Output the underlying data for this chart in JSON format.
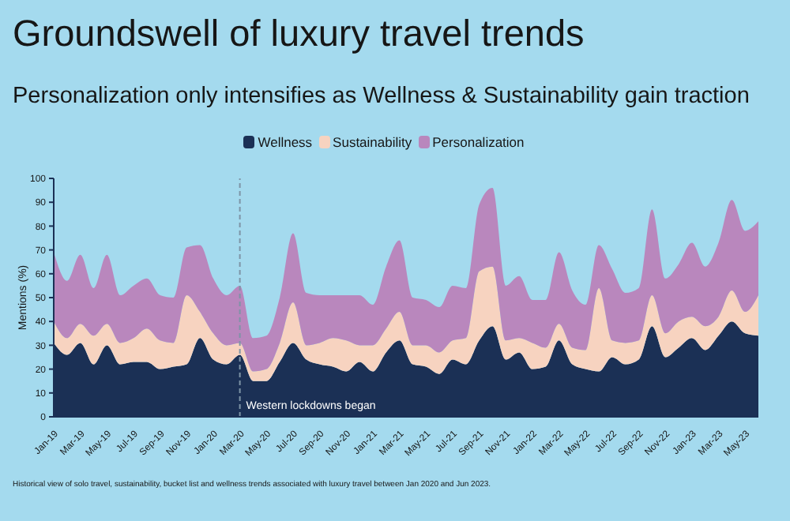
{
  "chart_data": {
    "type": "area",
    "title": "Groundswell of luxury travel trends",
    "subtitle": "Personalization only intensifies as Wellness & Sustainability gain traction",
    "ylabel": "Mentions (%)",
    "annotations": [
      "Historical view of solo travel, sustainability, bucket list and wellness trends associated with luxury travel between Jan 2020 and Jun 2023."
    ],
    "categories": [
      "Jan-19",
      null,
      "Mar-19",
      null,
      "May-19",
      null,
      "Jul-19",
      null,
      "Sep-19",
      null,
      "Nov-19",
      null,
      "Jan-20",
      null,
      "Mar-20",
      null,
      "May-20",
      null,
      "Jul-20",
      null,
      "Sep-20",
      null,
      "Nov-20",
      null,
      "Jan-21",
      null,
      "Mar-21",
      null,
      "May-21",
      null,
      "Jul-21",
      null,
      "Sep-21",
      null,
      "Nov-21",
      null,
      "Jan-22",
      null,
      "Mar-22",
      null,
      "May-22",
      null,
      "Jul-22",
      null,
      "Sep-22",
      null,
      "Nov-22",
      null,
      "Jan-23",
      null,
      "Mar-23",
      null,
      "May-23",
      null
    ],
    "series": [
      {
        "name": "Wellness",
        "color": "#1b3055",
        "values": [
          31,
          26,
          31,
          22,
          30,
          22,
          23,
          23,
          20,
          21,
          22,
          33,
          24,
          22,
          26,
          15,
          15,
          23,
          31,
          24,
          22,
          21,
          19,
          23,
          19,
          27,
          32,
          22,
          21,
          18,
          24,
          22,
          32,
          38,
          24,
          27,
          20,
          21,
          32,
          22,
          20,
          19,
          25,
          22,
          24,
          38,
          25,
          29,
          33,
          28,
          34,
          40,
          35,
          34
        ]
      },
      {
        "name": "Sustainability",
        "color": "#f7d3c0",
        "values": [
          9,
          7,
          8,
          12,
          9,
          9,
          10,
          14,
          12,
          10,
          29,
          11,
          11,
          8,
          5,
          4,
          5,
          8,
          17,
          6,
          9,
          12,
          13,
          7,
          11,
          10,
          12,
          8,
          9,
          9,
          8,
          11,
          29,
          25,
          8,
          6,
          11,
          8,
          7,
          7,
          8,
          35,
          7,
          9,
          8,
          13,
          10,
          11,
          9,
          10,
          8,
          13,
          9,
          17
        ]
      },
      {
        "name": "Personalization",
        "color": "#b987bd",
        "values": [
          29,
          24,
          29,
          20,
          29,
          20,
          22,
          21,
          19,
          19,
          20,
          28,
          23,
          21,
          24,
          14,
          14,
          19,
          29,
          22,
          20,
          18,
          19,
          21,
          17,
          26,
          30,
          20,
          19,
          19,
          23,
          21,
          28,
          33,
          23,
          26,
          18,
          20,
          30,
          24,
          19,
          18,
          30,
          21,
          22,
          36,
          23,
          24,
          31,
          25,
          31,
          38,
          34,
          31
        ]
      }
    ],
    "stacked": true,
    "ylim": [
      0,
      100
    ],
    "yticks": [
      0,
      10,
      20,
      30,
      40,
      50,
      60,
      70,
      80,
      90,
      100
    ],
    "legend": "top",
    "ref_lines": [
      {
        "axis": "x",
        "value": "Mar-20",
        "label": "Western lockdowns began",
        "color": "#7d94a6",
        "line_style": "dashed"
      }
    ]
  }
}
